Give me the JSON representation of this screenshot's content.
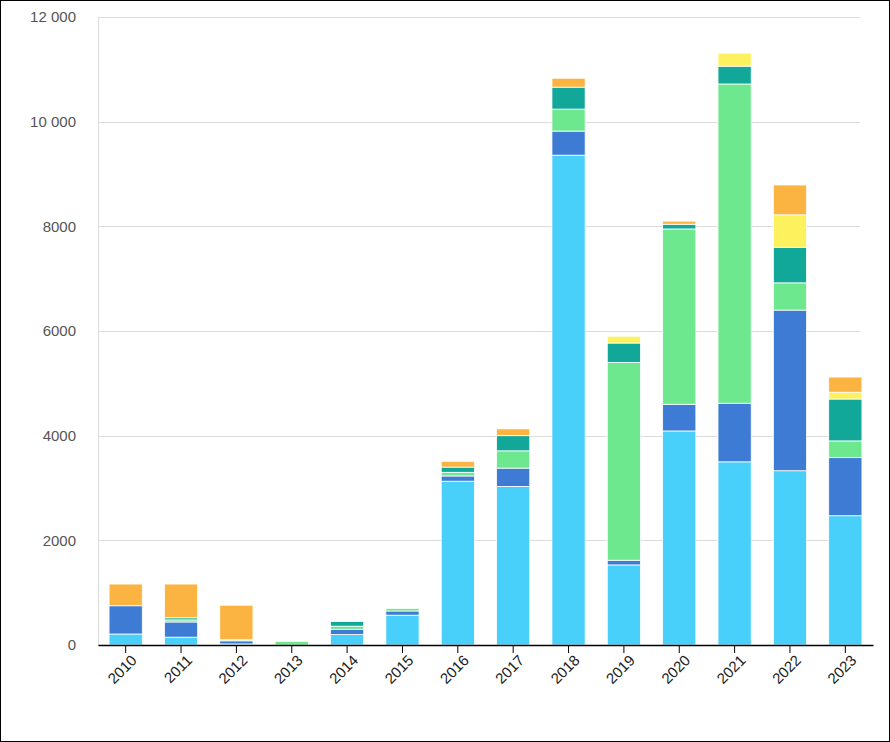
{
  "chart_data": {
    "type": "bar",
    "stacked": true,
    "grid": true,
    "categories": [
      "2010",
      "2011",
      "2012",
      "2013",
      "2014",
      "2015",
      "2016",
      "2017",
      "2018",
      "2019",
      "2020",
      "2021",
      "2022",
      "2023"
    ],
    "series": [
      {
        "color": "#48cffa",
        "values": [
          210,
          150,
          20,
          0,
          200,
          570,
          3130,
          3030,
          9360,
          1530,
          4090,
          3500,
          3330,
          2470
        ]
      },
      {
        "color": "#3d7bd4",
        "values": [
          540,
          290,
          60,
          0,
          100,
          80,
          100,
          350,
          460,
          90,
          510,
          1120,
          3070,
          1110
        ]
      },
      {
        "color": "#6ee88e",
        "values": [
          0,
          40,
          20,
          70,
          60,
          50,
          70,
          330,
          420,
          3780,
          3350,
          6100,
          520,
          320
        ]
      },
      {
        "color": "#12a899",
        "values": [
          0,
          40,
          0,
          0,
          90,
          0,
          100,
          290,
          420,
          370,
          90,
          340,
          680,
          800
        ]
      },
      {
        "color": "#fdf15e",
        "values": [
          0,
          0,
          0,
          0,
          0,
          0,
          0,
          0,
          0,
          130,
          0,
          250,
          620,
          130
        ]
      },
      {
        "color": "#fbb441",
        "values": [
          415,
          645,
          660,
          0,
          0,
          0,
          110,
          130,
          170,
          0,
          60,
          0,
          570,
          290
        ]
      }
    ],
    "ylim": [
      0,
      12000
    ],
    "yticks": [
      0,
      2000,
      4000,
      6000,
      8000,
      {
        "value": 10000,
        "label": "10 000"
      },
      {
        "value": 12000,
        "label": "12 000"
      }
    ]
  }
}
